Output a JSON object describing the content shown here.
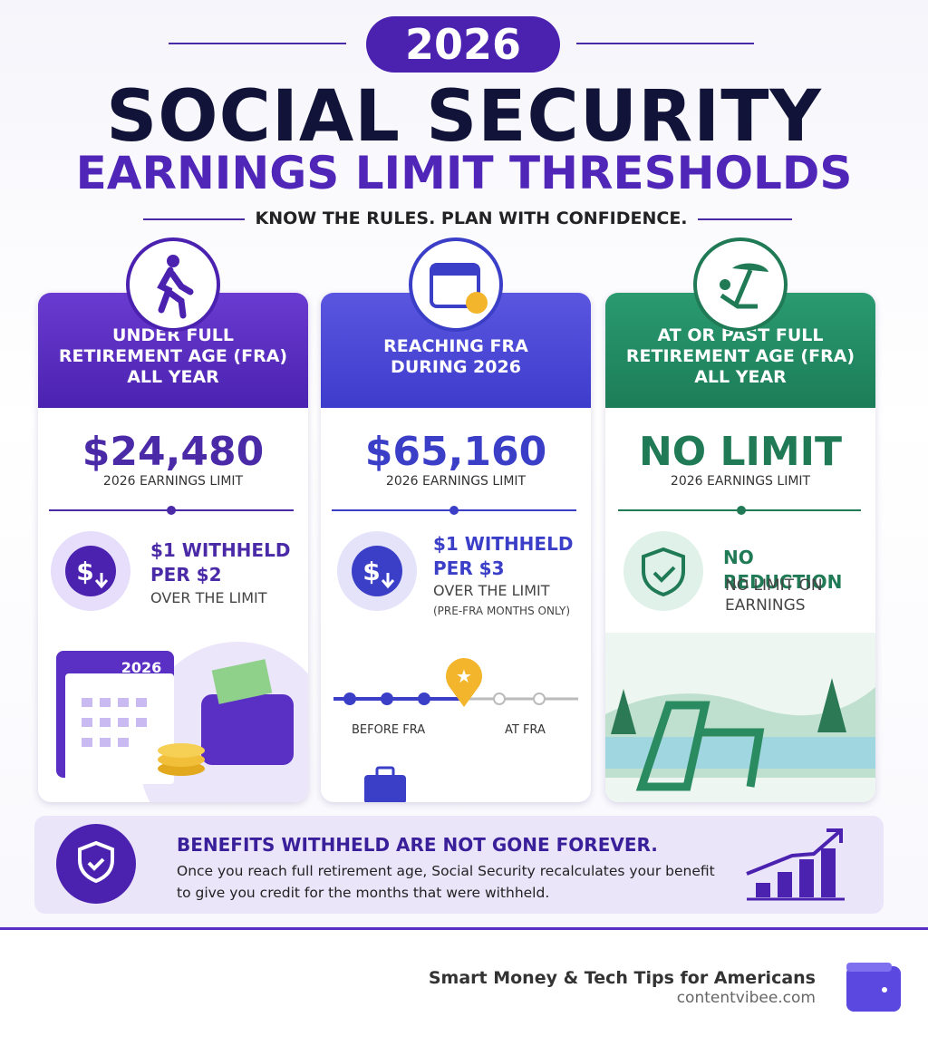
{
  "header": {
    "year": "2026",
    "title": "SOCIAL SECURITY",
    "subtitle": "EARNINGS LIMIT THRESHOLDS",
    "tagline": "KNOW THE RULES. PLAN WITH CONFIDENCE."
  },
  "cards": [
    {
      "heading": [
        "UNDER FULL",
        "RETIREMENT AGE (FRA)",
        "ALL YEAR"
      ],
      "amount": "$24,480",
      "amount_label": "2026 EARNINGS LIMIT",
      "rule": [
        "$1 WITHHELD",
        "PER $2"
      ],
      "note": [
        "OVER THE LIMIT"
      ],
      "calendar_label": "2026"
    },
    {
      "heading": [
        "REACHING FRA",
        "DURING 2026"
      ],
      "amount": "$65,160",
      "amount_label": "2026 EARNINGS LIMIT",
      "rule": [
        "$1 WITHHELD",
        "PER $3"
      ],
      "note": [
        "OVER THE LIMIT",
        "(PRE-FRA MONTHS ONLY)"
      ],
      "timeline": [
        "BEFORE FRA",
        "AT FRA"
      ]
    },
    {
      "heading": [
        "AT OR PAST FULL",
        "RETIREMENT AGE (FRA)",
        "ALL YEAR"
      ],
      "amount": "NO LIMIT",
      "amount_label": "2026 EARNINGS LIMIT",
      "rule": [
        "NO REDUCTION"
      ],
      "note": [
        "NO LIMIT ON",
        "EARNINGS"
      ]
    }
  ],
  "banner": {
    "title": "BENEFITS WITHHELD ARE NOT GONE FOREVER.",
    "text": [
      "Once you reach full retirement age, Social Security recalculates your benefit",
      "to give you credit for the months that were withheld."
    ]
  },
  "footer": {
    "tagline": "Smart Money & Tech Tips for Americans",
    "site": "contentvibee.com"
  }
}
